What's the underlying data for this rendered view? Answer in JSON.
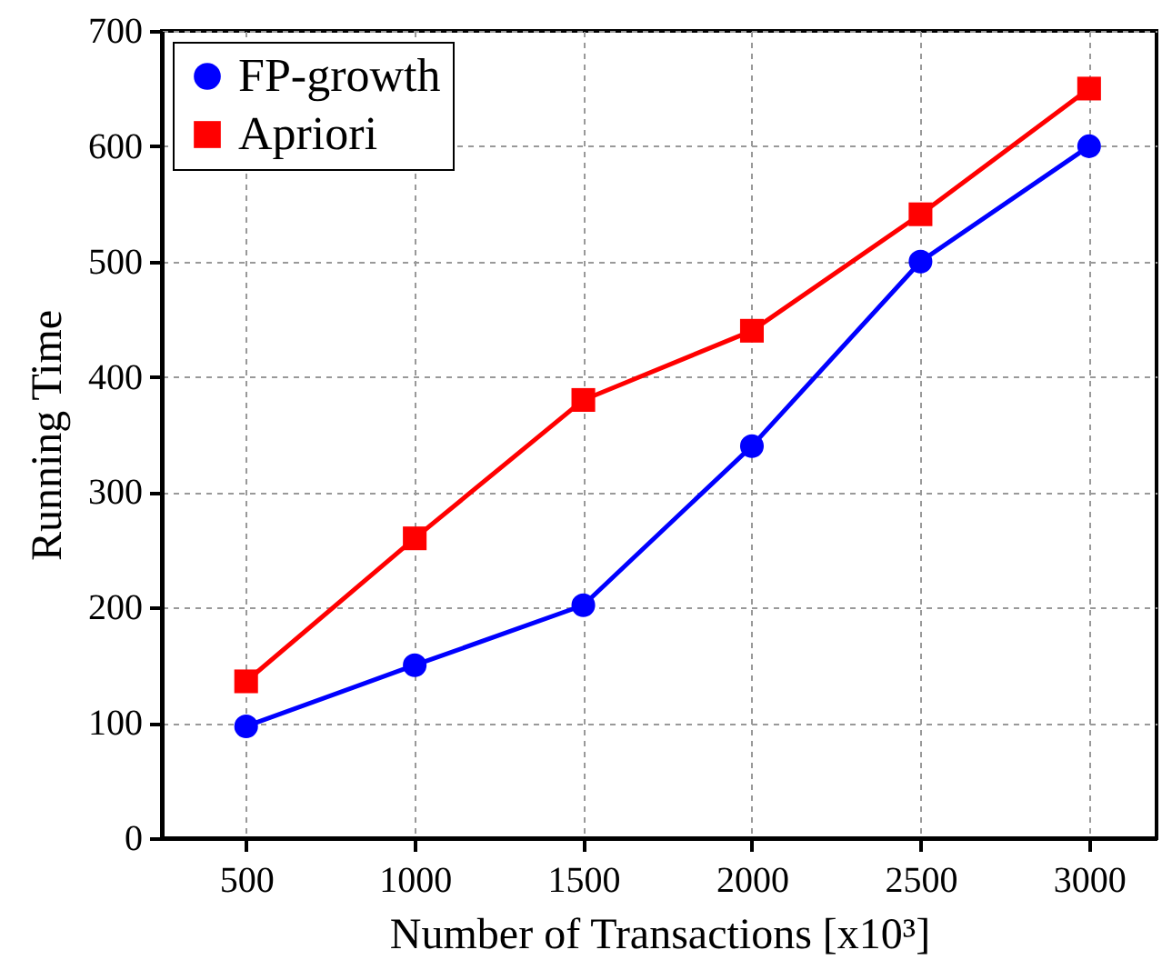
{
  "chart_data": {
    "type": "line",
    "xlabel": "Number of Transactions [x10³]",
    "ylabel": "Running Time",
    "x": [
      500,
      1000,
      1500,
      2000,
      2500,
      3000
    ],
    "series": [
      {
        "name": "FP-growth",
        "color": "#0000ff",
        "marker": "circle",
        "values": [
          97,
          150,
          202,
          340,
          500,
          600
        ]
      },
      {
        "name": "Apriori",
        "color": "#ff0000",
        "marker": "square",
        "values": [
          136,
          260,
          380,
          440,
          541,
          650
        ]
      }
    ],
    "xlim": [
      250,
      3200
    ],
    "ylim": [
      0,
      700
    ],
    "xticks": [
      500,
      1000,
      1500,
      2000,
      2500,
      3000
    ],
    "yticks": [
      0,
      100,
      200,
      300,
      400,
      500,
      600,
      700
    ],
    "grid": true,
    "legend": "top left",
    "line_style": "solid"
  }
}
